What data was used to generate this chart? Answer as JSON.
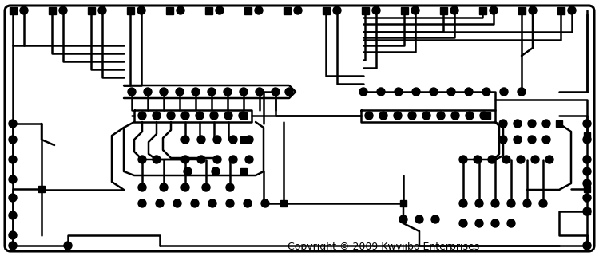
{
  "bg_color": "#ffffff",
  "line_color": "#000000",
  "pad_color": "#000000",
  "lw": 1.8,
  "copyright": "Copyright © 2009 Kwyjibo Enterprises",
  "copyright_fontsize": 9,
  "figsize": [
    7.5,
    3.21
  ],
  "dpi": 100
}
